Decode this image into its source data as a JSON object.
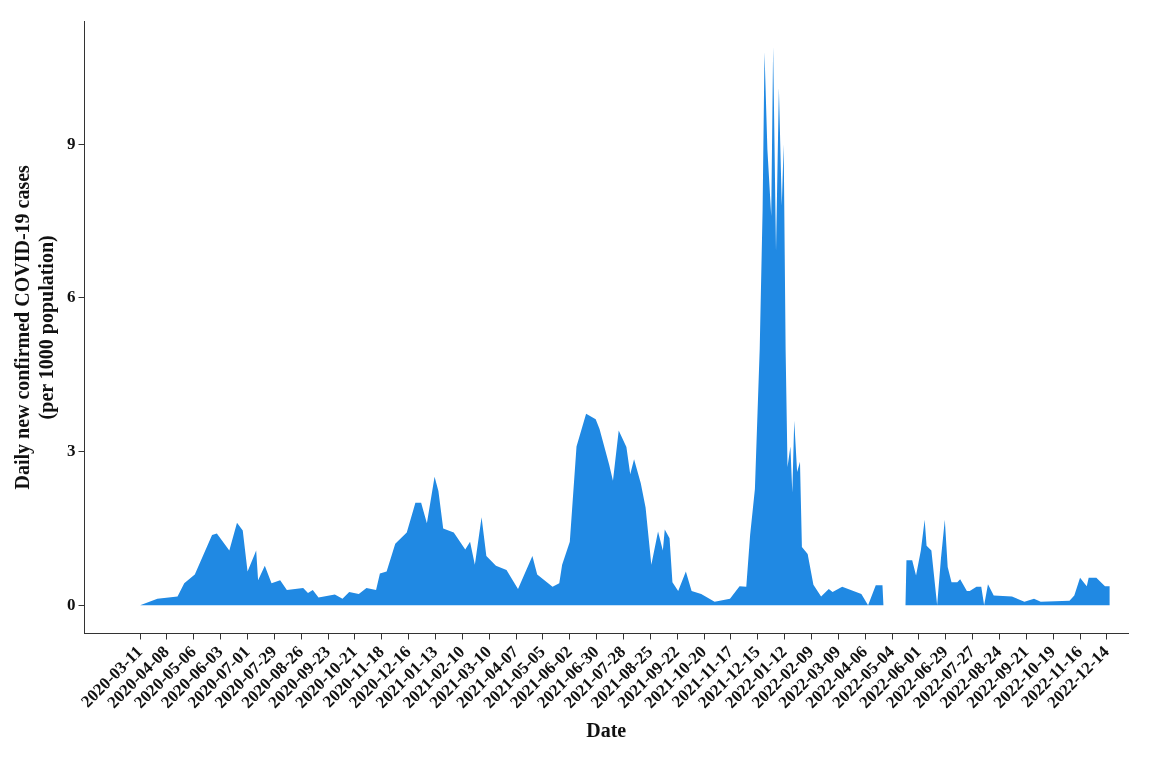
{
  "chart_data": {
    "type": "area",
    "xlabel": "Date",
    "ylabel": "Daily new confirmed COVID-19 cases\n(per 1000 population)",
    "xlim": [
      "2020-01-13",
      "2023-01-05"
    ],
    "ylim": [
      -0.55,
      11.4
    ],
    "yticks": [
      0,
      3,
      6,
      9
    ],
    "xticks": [
      "2020-03-11",
      "2020-04-08",
      "2020-05-06",
      "2020-06-03",
      "2020-07-01",
      "2020-07-29",
      "2020-08-26",
      "2020-09-23",
      "2020-10-21",
      "2020-11-18",
      "2020-12-16",
      "2021-01-13",
      "2021-02-10",
      "2021-03-10",
      "2021-04-07",
      "2021-05-05",
      "2021-06-02",
      "2021-06-30",
      "2021-07-28",
      "2021-08-25",
      "2021-09-22",
      "2021-10-20",
      "2021-11-17",
      "2021-12-15",
      "2022-01-12",
      "2022-02-09",
      "2022-03-09",
      "2022-04-06",
      "2022-05-04",
      "2022-06-01",
      "2022-06-29",
      "2022-07-27",
      "2022-08-24",
      "2022-09-21",
      "2022-10-19",
      "2022-11-16",
      "2022-12-14"
    ],
    "grid": false,
    "legend": false,
    "marker": "none",
    "series": [
      {
        "color": "#2089e3",
        "x": [
          "2020-03-11",
          "2020-03-29",
          "2020-04-19",
          "2020-04-26",
          "2020-05-07",
          "2020-05-25",
          "2020-05-30",
          "2020-06-12",
          "2020-06-20",
          "2020-06-26",
          "2020-07-01",
          "2020-07-10",
          "2020-07-12",
          "2020-07-19",
          "2020-07-26",
          "2020-08-04",
          "2020-08-11",
          "2020-08-28",
          "2020-09-02",
          "2020-09-07",
          "2020-09-13",
          "2020-09-30",
          "2020-10-08",
          "2020-10-15",
          "2020-10-25",
          "2020-11-02",
          "2020-11-12",
          "2020-11-16",
          "2020-11-23",
          "2020-12-02",
          "2020-12-14",
          "2020-12-23",
          "2020-12-29",
          "2021-01-04",
          "2021-01-12",
          "2021-01-16",
          "2021-01-21",
          "2021-02-01",
          "2021-02-13",
          "2021-02-18",
          "2021-02-23",
          "2021-03-02",
          "2021-03-07",
          "2021-03-17",
          "2021-03-28",
          "2021-04-09",
          "2021-04-24",
          "2021-04-29",
          "2021-05-15",
          "2021-05-22",
          "2021-05-25",
          "2021-06-02",
          "2021-06-09",
          "2021-06-19",
          "2021-06-29",
          "2021-07-03",
          "2021-07-13",
          "2021-07-17",
          "2021-07-23",
          "2021-07-31",
          "2021-08-04",
          "2021-08-08",
          "2021-08-15",
          "2021-08-20",
          "2021-08-26",
          "2021-09-02",
          "2021-09-07",
          "2021-09-09",
          "2021-09-14",
          "2021-09-17",
          "2021-09-23",
          "2021-10-01",
          "2021-10-07",
          "2021-10-17",
          "2021-10-31",
          "2021-11-16",
          "2021-11-26",
          "2021-12-03",
          "2021-12-07",
          "2021-12-12",
          "2021-12-17",
          "2021-12-20",
          "2021-12-22",
          "2021-12-25",
          "2021-12-29",
          "2021-12-31",
          "2022-01-03",
          "2022-01-06",
          "2022-01-09",
          "2022-01-11",
          "2022-01-13",
          "2022-01-15",
          "2022-01-18",
          "2022-01-20",
          "2022-01-22",
          "2022-01-25",
          "2022-01-28",
          "2022-01-30",
          "2022-02-05",
          "2022-02-11",
          "2022-02-19",
          "2022-02-27",
          "2022-03-03",
          "2022-03-13",
          "2022-04-02",
          "2022-04-09",
          "2022-04-17",
          "2022-04-24",
          "2022-04-25",
          "2022-05-18",
          "2022-05-19",
          "2022-05-25",
          "2022-05-29",
          "2022-06-03",
          "2022-06-07",
          "2022-06-09",
          "2022-06-14",
          "2022-06-20",
          "2022-06-24",
          "2022-06-28",
          "2022-07-01",
          "2022-07-05",
          "2022-07-11",
          "2022-07-14",
          "2022-07-21",
          "2022-07-24",
          "2022-07-31",
          "2022-08-05",
          "2022-08-08",
          "2022-08-12",
          "2022-08-18",
          "2022-09-06",
          "2022-09-19",
          "2022-09-29",
          "2022-10-06",
          "2022-11-05",
          "2022-11-10",
          "2022-11-16",
          "2022-11-23",
          "2022-11-25",
          "2022-12-03",
          "2022-12-12",
          "2022-12-17"
        ],
        "values": [
          0,
          0.13,
          0.17,
          0.43,
          0.6,
          1.37,
          1.4,
          1.07,
          1.61,
          1.46,
          0.66,
          1.07,
          0.49,
          0.77,
          0.43,
          0.49,
          0.3,
          0.34,
          0.24,
          0.3,
          0.15,
          0.21,
          0.13,
          0.26,
          0.22,
          0.34,
          0.3,
          0.62,
          0.66,
          1.2,
          1.42,
          2.0,
          2.0,
          1.6,
          2.51,
          2.23,
          1.5,
          1.42,
          1.09,
          1.24,
          0.79,
          1.72,
          0.96,
          0.77,
          0.69,
          0.32,
          0.96,
          0.6,
          0.36,
          0.43,
          0.79,
          1.24,
          3.1,
          3.74,
          3.63,
          3.44,
          2.75,
          2.43,
          3.41,
          3.09,
          2.56,
          2.85,
          2.38,
          1.91,
          0.79,
          1.44,
          1.07,
          1.48,
          1.31,
          0.45,
          0.28,
          0.66,
          0.28,
          0.22,
          0.07,
          0.13,
          0.37,
          0.36,
          1.37,
          2.27,
          5.0,
          7.7,
          10.8,
          8.9,
          7.6,
          10.9,
          6.9,
          10.1,
          7.8,
          9.0,
          5.0,
          2.7,
          3.1,
          2.2,
          3.6,
          2.6,
          2.8,
          1.14,
          1.0,
          0.4,
          0.17,
          0.32,
          0.26,
          0.36,
          0.22,
          0,
          0.39,
          0.39,
          0,
          0,
          0.88,
          0.88,
          0.58,
          1.07,
          1.67,
          1.16,
          1.07,
          0,
          0.92,
          1.67,
          0.75,
          0.45,
          0.45,
          0.51,
          0.28,
          0.28,
          0.36,
          0.36,
          0,
          0.41,
          0.19,
          0.17,
          0.07,
          0.13,
          0.07,
          0.09,
          0.19,
          0.54,
          0.37,
          0.54,
          0.54,
          0.37,
          0.37
        ]
      }
    ]
  }
}
